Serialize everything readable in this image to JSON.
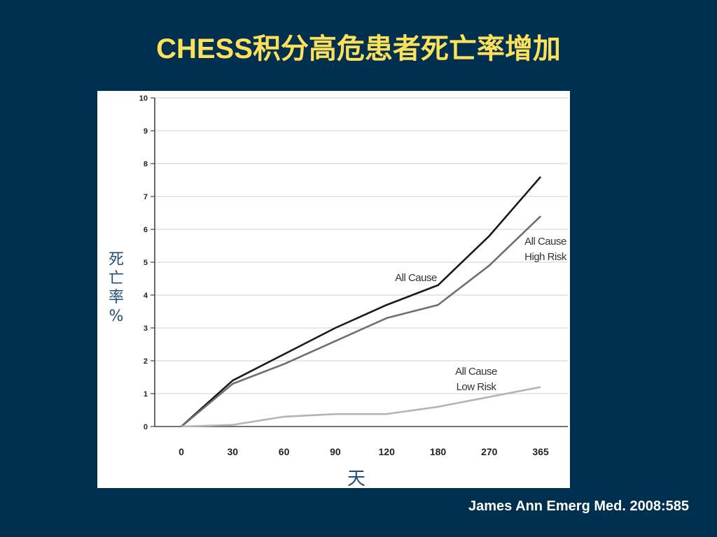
{
  "slide": {
    "title": "CHESS积分高危患者死亡率增加",
    "citation": "James Ann Emerg Med. 2008:585"
  },
  "colors": {
    "background": "#00304f",
    "title": "#ffe05a",
    "axis_label": "#1f4e79",
    "series_dark": "#1a1a1a",
    "series_mid": "#6e6e6e",
    "series_light": "#b4b4b4"
  },
  "chart_data": {
    "type": "line",
    "title": "",
    "xlabel": "天",
    "ylabel": "死亡率%",
    "categories": [
      "0",
      "30",
      "60",
      "90",
      "120",
      "180",
      "270",
      "365"
    ],
    "ylim": [
      0,
      10
    ],
    "yticks": [
      "0",
      "1",
      "2",
      "3",
      "4",
      "5",
      "6",
      "7",
      "8",
      "9",
      "10"
    ],
    "grid": true,
    "series": [
      {
        "values": [
          0,
          1.4,
          2.2,
          3.0,
          3.7,
          4.3,
          5.8,
          7.6
        ]
      },
      {
        "values": [
          0,
          1.3,
          1.9,
          2.6,
          3.3,
          3.7,
          4.9,
          6.4
        ]
      },
      {
        "values": [
          0,
          0.05,
          0.3,
          0.38,
          0.38,
          0.6,
          0.9,
          1.2
        ]
      }
    ],
    "annotations": [
      {
        "id": "all-cause",
        "lines": [
          "All Cause"
        ]
      },
      {
        "id": "high-risk",
        "lines": [
          "All Cause",
          "High Risk"
        ]
      },
      {
        "id": "low-risk",
        "lines": [
          "All Cause",
          "Low Risk"
        ]
      }
    ]
  }
}
